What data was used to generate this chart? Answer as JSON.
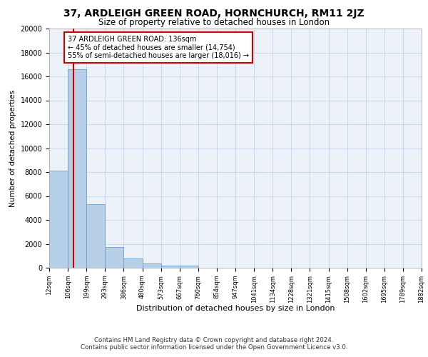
{
  "title_line1": "37, ARDLEIGH GREEN ROAD, HORNCHURCH, RM11 2JZ",
  "title_line2": "Size of property relative to detached houses in London",
  "xlabel": "Distribution of detached houses by size in London",
  "ylabel": "Number of detached properties",
  "num_bins": 20,
  "bar_heights": [
    8100,
    16600,
    5300,
    1750,
    750,
    350,
    200,
    150,
    0,
    0,
    0,
    0,
    0,
    0,
    0,
    0,
    0,
    0,
    0,
    0
  ],
  "bar_color": "#b8cfe8",
  "bar_edgecolor": "#6a9fd4",
  "grid_color": "#c8d8ec",
  "bg_color": "#edf2f9",
  "property_bin": 1,
  "red_line_color": "#cc0000",
  "annotation_text": "37 ARDLEIGH GREEN ROAD: 136sqm\n← 45% of detached houses are smaller (14,754)\n55% of semi-detached houses are larger (18,016) →",
  "annotation_box_color": "#ffffff",
  "annotation_border_color": "#cc0000",
  "tick_labels": [
    "12sqm",
    "106sqm",
    "199sqm",
    "293sqm",
    "386sqm",
    "480sqm",
    "573sqm",
    "667sqm",
    "760sqm",
    "854sqm",
    "947sqm",
    "1041sqm",
    "1134sqm",
    "1228sqm",
    "1321sqm",
    "1415sqm",
    "1508sqm",
    "1602sqm",
    "1695sqm",
    "1789sqm",
    "1882sqm"
  ],
  "ylim": [
    0,
    20000
  ],
  "yticks": [
    0,
    2000,
    4000,
    6000,
    8000,
    10000,
    12000,
    14000,
    16000,
    18000,
    20000
  ],
  "footer_line1": "Contains HM Land Registry data © Crown copyright and database right 2024.",
  "footer_line2": "Contains public sector information licensed under the Open Government Licence v3.0.",
  "red_line_x": 1.3
}
